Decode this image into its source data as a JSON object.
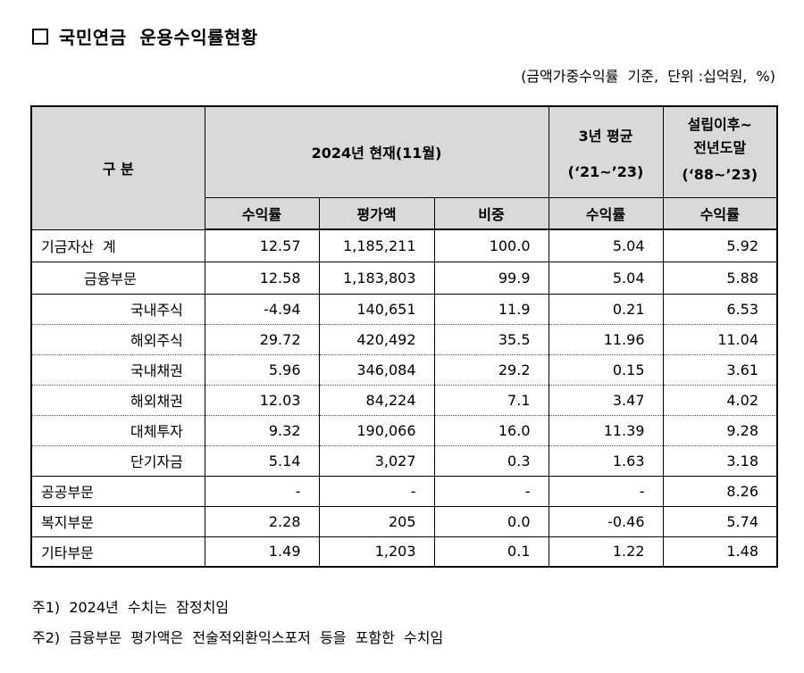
{
  "title": "국민연금  운용수익률현황",
  "unit_note": "(금액가중수익률  기준,  단위 :십억원,  %)",
  "header": {
    "category": "구  분",
    "current": "2024년  현재(11월)",
    "avg3_line1": "3년  평균",
    "avg3_line2": "(‘21~’23)",
    "since_line1": "설립이후~",
    "since_line2": "전년도말",
    "since_line3": "(‘88~’23)",
    "col_return": "수익률",
    "col_value": "평가액",
    "col_weight": "비중",
    "col_avg3_return": "수익률",
    "col_since_return": "수익률"
  },
  "rows": [
    {
      "label": "기금자산  계",
      "ret": "12.57",
      "value": "1,185,211",
      "weight": "100.0",
      "avg3": "5.04",
      "since": "5.92"
    },
    {
      "label": "금융부문",
      "ret": "12.58",
      "value": "1,183,803",
      "weight": "99.9",
      "avg3": "5.04",
      "since": "5.88"
    },
    {
      "label": "국내주식",
      "ret": "-4.94",
      "value": "140,651",
      "weight": "11.9",
      "avg3": "0.21",
      "since": "6.53"
    },
    {
      "label": "해외주식",
      "ret": "29.72",
      "value": "420,492",
      "weight": "35.5",
      "avg3": "11.96",
      "since": "11.04"
    },
    {
      "label": "국내채권",
      "ret": "5.96",
      "value": "346,084",
      "weight": "29.2",
      "avg3": "0.15",
      "since": "3.61"
    },
    {
      "label": "해외채권",
      "ret": "12.03",
      "value": "84,224",
      "weight": "7.1",
      "avg3": "3.47",
      "since": "4.02"
    },
    {
      "label": "대체투자",
      "ret": "9.32",
      "value": "190,066",
      "weight": "16.0",
      "avg3": "11.39",
      "since": "9.28"
    },
    {
      "label": "단기자금",
      "ret": "5.14",
      "value": "3,027",
      "weight": "0.3",
      "avg3": "1.63",
      "since": "3.18"
    },
    {
      "label": "공공부문",
      "ret": "-",
      "value": "-",
      "weight": "-",
      "avg3": "-",
      "since": "8.26"
    },
    {
      "label": "복지부문",
      "ret": "2.28",
      "value": "205",
      "weight": "0.0",
      "avg3": "-0.46",
      "since": "5.74"
    },
    {
      "label": "기타부문",
      "ret": "1.49",
      "value": "1,203",
      "weight": "0.1",
      "avg3": "1.22",
      "since": "1.48"
    }
  ],
  "notes": [
    "주1)  2024년  수치는  잠정치임",
    "주2)  금융부문  평가액은  전술적외환익스포저  등을  포함한  수치임"
  ]
}
